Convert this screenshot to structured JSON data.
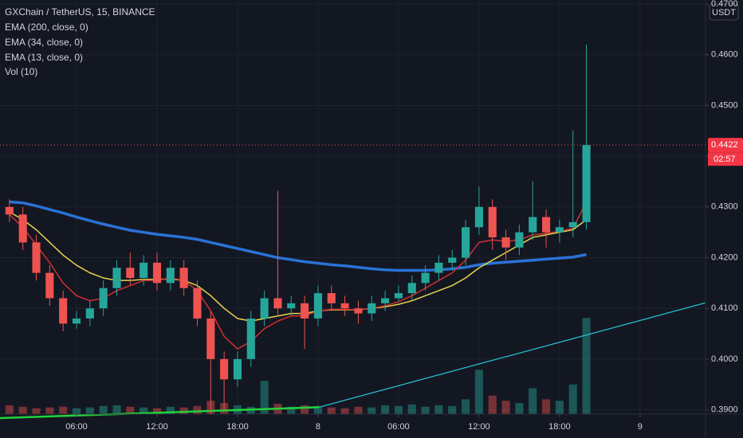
{
  "chart_data": {
    "type": "candlestick",
    "title": "GXChain / TetherUS, 15, BINANCE",
    "currency": "USDT",
    "x": [
      1,
      2,
      3,
      4,
      5,
      6,
      7,
      8,
      9,
      10,
      11,
      12,
      13,
      14,
      15,
      16,
      17,
      18,
      19,
      20,
      21,
      22,
      23,
      24,
      25,
      26,
      27,
      28,
      29,
      30,
      31,
      32,
      33,
      34,
      35,
      36,
      37,
      38,
      39,
      40,
      41,
      42,
      43,
      44
    ],
    "open": [
      0.43,
      0.4285,
      0.423,
      0.417,
      0.412,
      0.407,
      0.408,
      0.41,
      0.414,
      0.418,
      0.416,
      0.419,
      0.415,
      0.418,
      0.414,
      0.408,
      0.4,
      0.396,
      0.4,
      0.408,
      0.412,
      0.41,
      0.411,
      0.408,
      0.413,
      0.411,
      0.41,
      0.409,
      0.411,
      0.412,
      0.413,
      0.415,
      0.417,
      0.419,
      0.42,
      0.426,
      0.43,
      0.424,
      0.422,
      0.425,
      0.428,
      0.425,
      0.426,
      0.427
    ],
    "high": [
      0.4315,
      0.43,
      0.4245,
      0.4185,
      0.4135,
      0.4095,
      0.4115,
      0.4155,
      0.4195,
      0.421,
      0.4205,
      0.421,
      0.4195,
      0.4195,
      0.4155,
      0.4095,
      0.4015,
      0.4015,
      0.4095,
      0.4135,
      0.4332,
      0.4125,
      0.4125,
      0.4145,
      0.4145,
      0.4125,
      0.4115,
      0.4125,
      0.4135,
      0.4145,
      0.4165,
      0.4185,
      0.4205,
      0.4215,
      0.4275,
      0.434,
      0.4315,
      0.4255,
      0.4265,
      0.435,
      0.4295,
      0.4275,
      0.4451,
      0.462
    ],
    "low": [
      0.427,
      0.4215,
      0.4155,
      0.4105,
      0.4055,
      0.406,
      0.4065,
      0.4085,
      0.4125,
      0.4145,
      0.4145,
      0.4135,
      0.4135,
      0.4125,
      0.4065,
      0.389,
      0.39,
      0.3945,
      0.3985,
      0.4065,
      0.4085,
      0.4085,
      0.402,
      0.4065,
      0.4095,
      0.4085,
      0.407,
      0.4075,
      0.4095,
      0.4115,
      0.4115,
      0.4135,
      0.4155,
      0.4175,
      0.4185,
      0.4245,
      0.4215,
      0.4195,
      0.4205,
      0.4235,
      0.422,
      0.423,
      0.424,
      0.4255
    ],
    "close": [
      0.4285,
      0.423,
      0.417,
      0.412,
      0.407,
      0.408,
      0.41,
      0.414,
      0.418,
      0.416,
      0.419,
      0.415,
      0.418,
      0.414,
      0.408,
      0.4,
      0.396,
      0.4,
      0.408,
      0.412,
      0.41,
      0.411,
      0.408,
      0.413,
      0.411,
      0.41,
      0.409,
      0.411,
      0.412,
      0.413,
      0.415,
      0.417,
      0.419,
      0.42,
      0.426,
      0.43,
      0.424,
      0.422,
      0.425,
      0.428,
      0.425,
      0.426,
      0.427,
      0.4422
    ],
    "up_color": "#26a69a",
    "down_color": "#ef5350",
    "volume_name": "Vol (10)",
    "volume": [
      12,
      10,
      8,
      9,
      10,
      8,
      9,
      11,
      12,
      10,
      9,
      8,
      10,
      9,
      11,
      18,
      15,
      12,
      10,
      45,
      14,
      10,
      12,
      11,
      9,
      8,
      10,
      9,
      12,
      11,
      13,
      10,
      12,
      11,
      20,
      60,
      25,
      18,
      15,
      35,
      20,
      18,
      40,
      130
    ],
    "vol_lim": [
      0,
      140
    ],
    "series": [
      {
        "name": "EMA (200, close, 0)",
        "color": "#2a72d5",
        "values": [
          0.431,
          0.4308,
          0.4302,
          0.4295,
          0.4288,
          0.428,
          0.4273,
          0.4266,
          0.426,
          0.4254,
          0.425,
          0.4246,
          0.4243,
          0.424,
          0.4236,
          0.423,
          0.4224,
          0.4218,
          0.4212,
          0.4206,
          0.42,
          0.4196,
          0.4192,
          0.4189,
          0.4186,
          0.4184,
          0.4181,
          0.4178,
          0.4176,
          0.4175,
          0.4175,
          0.4175,
          0.4176,
          0.4178,
          0.4181,
          0.4186,
          0.4189,
          0.4191,
          0.4193,
          0.4195,
          0.4197,
          0.4199,
          0.4201,
          0.4206
        ]
      },
      {
        "name": "EMA (34, close, 0)",
        "color": "#e8d44d",
        "values": [
          0.429,
          0.4275,
          0.4255,
          0.423,
          0.4205,
          0.4185,
          0.417,
          0.416,
          0.4155,
          0.4155,
          0.4157,
          0.4157,
          0.4158,
          0.4155,
          0.4145,
          0.4125,
          0.41,
          0.408,
          0.4075,
          0.408,
          0.4085,
          0.409,
          0.409,
          0.4095,
          0.4097,
          0.4097,
          0.4097,
          0.41,
          0.4103,
          0.4108,
          0.4115,
          0.4125,
          0.4135,
          0.4145,
          0.416,
          0.418,
          0.4195,
          0.421,
          0.4225,
          0.424,
          0.4245,
          0.425,
          0.4255,
          0.4275
        ]
      },
      {
        "name": "EMA (13, close, 0)",
        "color": "#d32f2f",
        "values": [
          0.4285,
          0.426,
          0.4225,
          0.419,
          0.415,
          0.4125,
          0.4115,
          0.412,
          0.4135,
          0.4145,
          0.4155,
          0.4155,
          0.416,
          0.4155,
          0.4135,
          0.4095,
          0.4045,
          0.402,
          0.4035,
          0.406,
          0.4075,
          0.4085,
          0.4085,
          0.4095,
          0.4098,
          0.4098,
          0.4097,
          0.41,
          0.4105,
          0.4113,
          0.4125,
          0.414,
          0.4155,
          0.417,
          0.4195,
          0.423,
          0.4235,
          0.4232,
          0.4235,
          0.4245,
          0.4248,
          0.4252,
          0.4258,
          0.431
        ]
      }
    ],
    "trendlines": [
      {
        "color": "#22d33a",
        "x": [
          0.296,
          24.06
        ],
        "values": [
          0.38837,
          0.3905
        ]
      },
      {
        "color": "#26c6da",
        "x": [
          24.06,
          52.88
        ],
        "values": [
          0.3905,
          0.4111
        ]
      }
    ],
    "last_price": 0.4422,
    "countdown": "02:57",
    "xlim": [
      0.296,
      52.88
    ],
    "ylim": [
      0.38915,
      0.4708
    ],
    "xticks": [
      {
        "value": 6,
        "label": "06:00"
      },
      {
        "value": 12,
        "label": "12:00"
      },
      {
        "value": 18,
        "label": "18:00"
      },
      {
        "value": 24,
        "label": "8"
      },
      {
        "value": 30,
        "label": "06:00"
      },
      {
        "value": 36,
        "label": "12:00"
      },
      {
        "value": 42,
        "label": "18:00"
      },
      {
        "value": 48,
        "label": "9"
      }
    ],
    "yticks": [
      {
        "value": 0.39,
        "label": "0.3900"
      },
      {
        "value": 0.4,
        "label": "0.4000"
      },
      {
        "value": 0.41,
        "label": "0.4100"
      },
      {
        "value": 0.42,
        "label": "0.4200"
      },
      {
        "value": 0.43,
        "label": "0.4300"
      },
      {
        "value": 0.44,
        "label": "0.4400"
      },
      {
        "value": 0.45,
        "label": "0.4500"
      },
      {
        "value": 0.46,
        "label": "0.4600"
      },
      {
        "value": 0.47,
        "label": "0.4700"
      }
    ],
    "grid": true
  }
}
